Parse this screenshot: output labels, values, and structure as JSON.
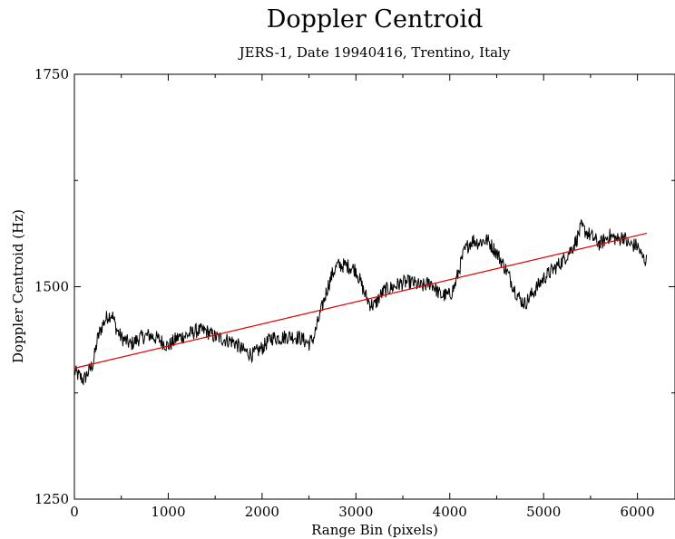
{
  "chart_data": {
    "type": "line",
    "title": "Doppler Centroid",
    "subtitle": "JERS-1, Date 19940416, Trentino, Italy",
    "xlabel": "Range Bin  (pixels)",
    "ylabel": "Doppler Centroid  (Hz)",
    "xlim": [
      0,
      6400
    ],
    "ylim": [
      1250,
      1750
    ],
    "xticks": [
      0,
      1000,
      2000,
      3000,
      4000,
      5000,
      6000
    ],
    "yticks": [
      1250,
      1500,
      1750
    ],
    "legend": "none",
    "grid": false,
    "series": [
      {
        "color": "#000000",
        "style": "noisy",
        "x": [
          0,
          50,
          100,
          150,
          200,
          250,
          300,
          350,
          400,
          450,
          500,
          600,
          700,
          800,
          900,
          1000,
          1100,
          1200,
          1300,
          1400,
          1500,
          1600,
          1700,
          1800,
          1900,
          2000,
          2100,
          2200,
          2300,
          2400,
          2500,
          2550,
          2600,
          2650,
          2700,
          2750,
          2800,
          2900,
          3000,
          3100,
          3150,
          3200,
          3250,
          3300,
          3400,
          3500,
          3600,
          3700,
          3800,
          3900,
          4000,
          4050,
          4100,
          4150,
          4200,
          4250,
          4300,
          4400,
          4500,
          4600,
          4700,
          4750,
          4800,
          4900,
          5000,
          5100,
          5200,
          5300,
          5350,
          5400,
          5450,
          5500,
          5600,
          5700,
          5800,
          5850,
          5900,
          6000,
          6050,
          6100
        ],
        "y": [
          1400,
          1395,
          1390,
          1400,
          1410,
          1440,
          1455,
          1465,
          1468,
          1450,
          1440,
          1432,
          1440,
          1443,
          1438,
          1430,
          1440,
          1443,
          1448,
          1448,
          1441,
          1438,
          1435,
          1425,
          1420,
          1428,
          1440,
          1440,
          1442,
          1440,
          1433,
          1440,
          1460,
          1480,
          1500,
          1515,
          1525,
          1525,
          1520,
          1490,
          1480,
          1478,
          1488,
          1495,
          1500,
          1505,
          1505,
          1500,
          1505,
          1490,
          1490,
          1500,
          1520,
          1540,
          1550,
          1555,
          1552,
          1555,
          1540,
          1520,
          1495,
          1485,
          1480,
          1495,
          1510,
          1520,
          1530,
          1545,
          1555,
          1570,
          1565,
          1560,
          1550,
          1560,
          1555,
          1560,
          1550,
          1548,
          1535,
          1530
        ]
      },
      {
        "color": "#e00000",
        "style": "straight",
        "x": [
          0,
          6100
        ],
        "y": [
          1404,
          1563
        ]
      }
    ]
  }
}
